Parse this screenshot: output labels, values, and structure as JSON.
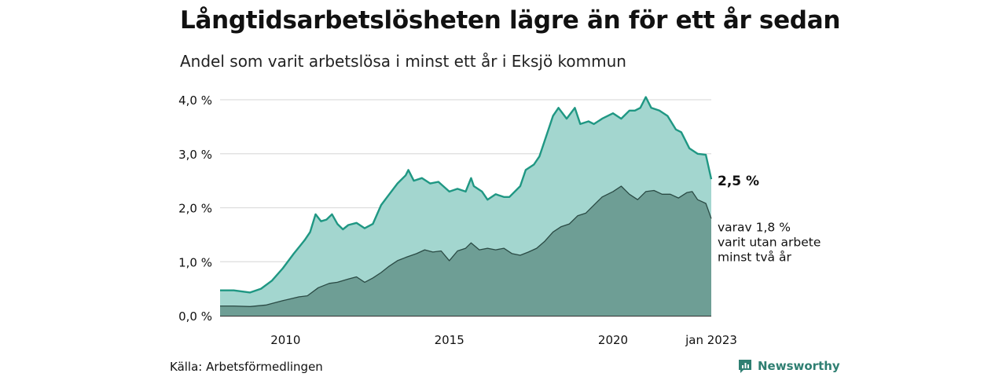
{
  "title": "Långtidsarbetslösheten lägre än för ett år sedan",
  "subtitle": "Andel som varit arbetslösa i minst ett år i Eksjö kommun",
  "source": "Källa: Arbetsförmedlingen",
  "brand": "Newsworthy",
  "colors": {
    "total_line": "#1f9783",
    "total_fill": "#a3d6cf",
    "longterm_line": "#2a4a44",
    "longterm_fill": "#6e9e95",
    "grid": "#dddddd",
    "brand": "#2f7f72"
  },
  "chart_data": {
    "type": "area",
    "x_axis": {
      "start": "2008-01",
      "end": "2023-01",
      "tick_labels": [
        "2010",
        "2015",
        "2020",
        "jan 2023"
      ]
    },
    "y_axis": {
      "range": [
        0,
        4.0
      ],
      "tick_labels": [
        "0,0 %",
        "1,0 %",
        "2,0 %",
        "3,0 %",
        "4,0 %"
      ],
      "grid": true
    },
    "annotations": {
      "total_end": "2,5 %",
      "longterm_end": [
        "varav 1,8 %",
        "varit utan arbete",
        "minst två år"
      ]
    },
    "series": [
      {
        "key": "total",
        "points": [
          [
            "2008-01",
            0.47
          ],
          [
            "2008-06",
            0.47
          ],
          [
            "2008-12",
            0.43
          ],
          [
            "2009-04",
            0.5
          ],
          [
            "2009-08",
            0.65
          ],
          [
            "2009-12",
            0.88
          ],
          [
            "2010-04",
            1.15
          ],
          [
            "2010-08",
            1.4
          ],
          [
            "2010-10",
            1.55
          ],
          [
            "2010-12",
            1.88
          ],
          [
            "2011-02",
            1.75
          ],
          [
            "2011-04",
            1.78
          ],
          [
            "2011-06",
            1.88
          ],
          [
            "2011-08",
            1.7
          ],
          [
            "2011-10",
            1.6
          ],
          [
            "2011-12",
            1.68
          ],
          [
            "2012-03",
            1.72
          ],
          [
            "2012-06",
            1.62
          ],
          [
            "2012-09",
            1.7
          ],
          [
            "2012-12",
            2.05
          ],
          [
            "2013-03",
            2.25
          ],
          [
            "2013-06",
            2.45
          ],
          [
            "2013-09",
            2.6
          ],
          [
            "2013-10",
            2.7
          ],
          [
            "2013-12",
            2.5
          ],
          [
            "2014-03",
            2.55
          ],
          [
            "2014-06",
            2.45
          ],
          [
            "2014-09",
            2.48
          ],
          [
            "2015-01",
            2.3
          ],
          [
            "2015-04",
            2.35
          ],
          [
            "2015-07",
            2.3
          ],
          [
            "2015-09",
            2.55
          ],
          [
            "2015-10",
            2.4
          ],
          [
            "2016-01",
            2.3
          ],
          [
            "2016-03",
            2.15
          ],
          [
            "2016-06",
            2.25
          ],
          [
            "2016-09",
            2.2
          ],
          [
            "2016-11",
            2.2
          ],
          [
            "2017-03",
            2.4
          ],
          [
            "2017-05",
            2.7
          ],
          [
            "2017-08",
            2.8
          ],
          [
            "2017-10",
            2.95
          ],
          [
            "2018-01",
            3.4
          ],
          [
            "2018-03",
            3.7
          ],
          [
            "2018-05",
            3.85
          ],
          [
            "2018-08",
            3.65
          ],
          [
            "2018-11",
            3.85
          ],
          [
            "2019-01",
            3.55
          ],
          [
            "2019-04",
            3.6
          ],
          [
            "2019-06",
            3.55
          ],
          [
            "2019-09",
            3.65
          ],
          [
            "2020-01",
            3.75
          ],
          [
            "2020-04",
            3.65
          ],
          [
            "2020-07",
            3.8
          ],
          [
            "2020-09",
            3.8
          ],
          [
            "2020-11",
            3.85
          ],
          [
            "2021-01",
            4.05
          ],
          [
            "2021-03",
            3.85
          ],
          [
            "2021-06",
            3.8
          ],
          [
            "2021-09",
            3.7
          ],
          [
            "2021-12",
            3.45
          ],
          [
            "2022-02",
            3.4
          ],
          [
            "2022-05",
            3.1
          ],
          [
            "2022-08",
            3.0
          ],
          [
            "2022-11",
            2.98
          ],
          [
            "2023-01",
            2.53
          ]
        ]
      },
      {
        "key": "longterm",
        "points": [
          [
            "2008-01",
            0.18
          ],
          [
            "2008-06",
            0.18
          ],
          [
            "2008-12",
            0.17
          ],
          [
            "2009-06",
            0.2
          ],
          [
            "2009-12",
            0.28
          ],
          [
            "2010-06",
            0.35
          ],
          [
            "2010-09",
            0.37
          ],
          [
            "2011-01",
            0.52
          ],
          [
            "2011-05",
            0.6
          ],
          [
            "2011-08",
            0.62
          ],
          [
            "2011-12",
            0.68
          ],
          [
            "2012-03",
            0.72
          ],
          [
            "2012-06",
            0.62
          ],
          [
            "2012-09",
            0.7
          ],
          [
            "2012-12",
            0.8
          ],
          [
            "2013-03",
            0.92
          ],
          [
            "2013-06",
            1.02
          ],
          [
            "2013-09",
            1.08
          ],
          [
            "2014-01",
            1.15
          ],
          [
            "2014-04",
            1.22
          ],
          [
            "2014-07",
            1.18
          ],
          [
            "2014-10",
            1.2
          ],
          [
            "2015-01",
            1.02
          ],
          [
            "2015-04",
            1.2
          ],
          [
            "2015-07",
            1.25
          ],
          [
            "2015-09",
            1.35
          ],
          [
            "2015-12",
            1.22
          ],
          [
            "2016-03",
            1.25
          ],
          [
            "2016-06",
            1.22
          ],
          [
            "2016-09",
            1.25
          ],
          [
            "2016-12",
            1.15
          ],
          [
            "2017-03",
            1.12
          ],
          [
            "2017-06",
            1.18
          ],
          [
            "2017-09",
            1.25
          ],
          [
            "2017-12",
            1.38
          ],
          [
            "2018-03",
            1.55
          ],
          [
            "2018-06",
            1.65
          ],
          [
            "2018-09",
            1.7
          ],
          [
            "2018-12",
            1.85
          ],
          [
            "2019-03",
            1.9
          ],
          [
            "2019-06",
            2.05
          ],
          [
            "2019-09",
            2.2
          ],
          [
            "2020-01",
            2.3
          ],
          [
            "2020-04",
            2.4
          ],
          [
            "2020-07",
            2.25
          ],
          [
            "2020-10",
            2.15
          ],
          [
            "2021-01",
            2.3
          ],
          [
            "2021-04",
            2.32
          ],
          [
            "2021-07",
            2.25
          ],
          [
            "2021-10",
            2.25
          ],
          [
            "2022-01",
            2.18
          ],
          [
            "2022-04",
            2.28
          ],
          [
            "2022-06",
            2.3
          ],
          [
            "2022-08",
            2.15
          ],
          [
            "2022-11",
            2.08
          ],
          [
            "2023-01",
            1.8
          ]
        ]
      }
    ]
  }
}
